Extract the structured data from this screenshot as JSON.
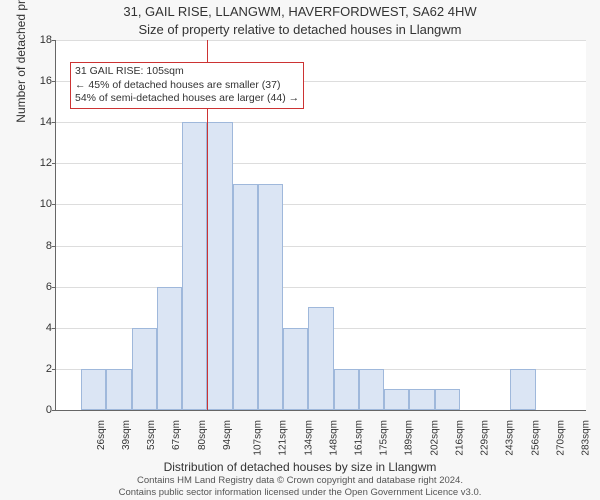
{
  "chart": {
    "type": "histogram",
    "title": "31, GAIL RISE, LLANGWM, HAVERFORDWEST, SA62 4HW",
    "subtitle": "Size of property relative to detached houses in Llangwm",
    "xlabel": "Distribution of detached houses by size in Llangwm",
    "ylabel": "Number of detached properties",
    "ylim": [
      0,
      18
    ],
    "ytick_step": 2,
    "xticks": [
      "26sqm",
      "39sqm",
      "53sqm",
      "67sqm",
      "80sqm",
      "94sqm",
      "107sqm",
      "121sqm",
      "134sqm",
      "148sqm",
      "161sqm",
      "175sqm",
      "189sqm",
      "202sqm",
      "216sqm",
      "229sqm",
      "243sqm",
      "256sqm",
      "270sqm",
      "283sqm",
      "297sqm"
    ],
    "background_color": "#ffffff",
    "page_background": "#f7f7f7",
    "grid_color": "#dddddd",
    "bar_fill": "#dbe5f4",
    "bar_border": "#9fb8db",
    "marker_color": "#cc3333",
    "text_color": "#333333",
    "axis_fontsize": 11,
    "label_fontsize": 12,
    "title_fontsize": 13,
    "bars": [
      0,
      2,
      2,
      4,
      6,
      14,
      14,
      11,
      11,
      4,
      5,
      2,
      2,
      1,
      1,
      1,
      0,
      0,
      2,
      0,
      0
    ],
    "marker_bin_index": 6,
    "annotation": {
      "line1": "31 GAIL RISE: 105sqm",
      "line2": "← 45% of detached houses are smaller (37)",
      "line3": "54% of semi-detached houses are larger (44) →"
    },
    "footer_line1": "Contains HM Land Registry data © Crown copyright and database right 2024.",
    "footer_line2": "Contains public sector information licensed under the Open Government Licence v3.0."
  }
}
